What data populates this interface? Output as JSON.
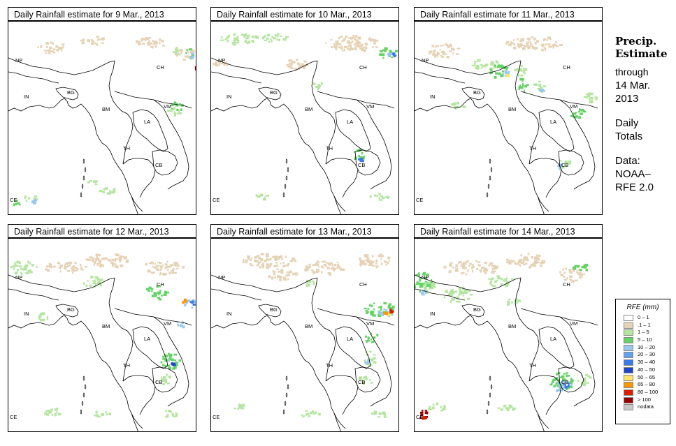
{
  "panels": [
    {
      "title": "Daily Rainfall estimate for  9 Mar., 2013"
    },
    {
      "title": "Daily Rainfall estimate for  10 Mar., 2013"
    },
    {
      "title": "Daily Rainfall estimate for  11 Mar., 2013"
    },
    {
      "title": "Daily Rainfall estimate for  12 Mar., 2013"
    },
    {
      "title": "Daily Rainfall estimate for  13 Mar., 2013"
    },
    {
      "title": "Daily Rainfall estimate for  14 Mar., 2013"
    }
  ],
  "country_labels": {
    "np": "NP",
    "ch": "CH",
    "in": "IN",
    "bg": "BG",
    "bm": "BM",
    "vm": "VM",
    "la": "LA",
    "th": "TH",
    "cb": "CB",
    "ce": "CE"
  },
  "sidebar": {
    "title_line1": "Precip.",
    "title_line2": "Estimate",
    "through": "through",
    "date_line1": "14 Mar.",
    "date_line2": "2013",
    "daily": "Daily",
    "totals": "Totals",
    "data_label": "Data:",
    "source1": "NOAA–",
    "source2": "RFE 2.0"
  },
  "legend": {
    "title": "RFE (mm)",
    "items": [
      {
        "range": "0 – 1",
        "color": "#ffffff"
      },
      {
        "range": ".1 – 1",
        "color": "#e6d2b4"
      },
      {
        "range": "1 – 5",
        "color": "#b4e6a0"
      },
      {
        "range": "5 – 10",
        "color": "#64d264"
      },
      {
        "range": "10 – 20",
        "color": "#96c8f0"
      },
      {
        "range": "20 – 30",
        "color": "#64a0f0"
      },
      {
        "range": "30 – 40",
        "color": "#3c78e6"
      },
      {
        "range": "40 – 50",
        "color": "#1e46c8"
      },
      {
        "range": "50 – 65",
        "color": "#ffe664"
      },
      {
        "range": "65 – 80",
        "color": "#ff9600"
      },
      {
        "range": "80 – 100",
        "color": "#dc1e00"
      },
      {
        "range": "> 100",
        "color": "#960000"
      },
      {
        "range": "nodata",
        "color": "#c8c8c8"
      }
    ]
  }
}
